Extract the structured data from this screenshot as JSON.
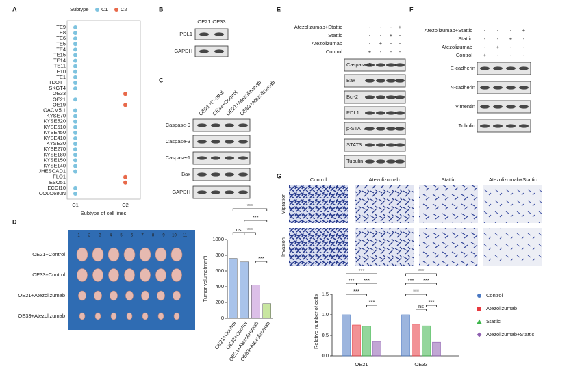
{
  "panel_labels": [
    "A",
    "B",
    "C",
    "D",
    "E",
    "F",
    "G"
  ],
  "blot_b": {
    "lanes": [
      "OE21",
      "OE33"
    ],
    "rows": [
      "PDL1",
      "GAPDH"
    ]
  },
  "blot_c": {
    "lanes": [
      "OE21+Control",
      "OE33+Control",
      "OE21+Atezolizumab",
      "OE33+Atezolizumab"
    ],
    "rows": [
      "Caspase-9",
      "Caspase-3",
      "Caspase-1",
      "Bax",
      "GAPDH"
    ]
  },
  "blot_e": {
    "treatments": [
      {
        "name": "Atezolizumab+Stattic",
        "signs": [
          "-",
          "-",
          "-",
          "+"
        ]
      },
      {
        "name": "Stattic",
        "signs": [
          "-",
          "-",
          "+",
          "-"
        ]
      },
      {
        "name": "Atezolizumab",
        "signs": [
          "-",
          "+",
          "-",
          "-"
        ]
      },
      {
        "name": "Control",
        "signs": [
          "+",
          "-",
          "-",
          "-"
        ]
      }
    ],
    "rows": [
      "Caspase-3",
      "Bax",
      "Bcl-2",
      "PDL1",
      "p-STAT3",
      "STAT3",
      "Tubulin"
    ]
  },
  "blot_f": {
    "treatments": [
      {
        "name": "Atezolizumab+Stattic",
        "signs": [
          "-",
          "-",
          "-",
          "+"
        ]
      },
      {
        "name": "Stattic",
        "signs": [
          "-",
          "-",
          "+",
          "-"
        ]
      },
      {
        "name": "Atezolizumab",
        "signs": [
          "-",
          "+",
          "-",
          "-"
        ]
      },
      {
        "name": "Control",
        "signs": [
          "+",
          "-",
          "-",
          "-"
        ]
      }
    ],
    "rows": [
      "E-cadherin",
      "N-cadherin",
      "Vimentin",
      "Tubulin"
    ]
  },
  "tumor_photo": {
    "ruler": [
      1,
      2,
      3,
      4,
      5,
      6,
      7,
      8,
      9,
      10,
      11
    ],
    "rows": [
      "OE21+Control",
      "OE33+Control",
      "OE21+Atezolizumab",
      "OE33+Atezolizumab"
    ]
  },
  "micrographs": {
    "columns": [
      "Control",
      "Atezolizumab",
      "Stattic",
      "Atezolizumab+Stattic"
    ],
    "rows": [
      "Migration",
      "Invasion"
    ]
  },
  "chart_data": [
    {
      "type": "dot_matrix",
      "legend_title": "Subtype",
      "series": [
        {
          "name": "C1",
          "color": "#7ec3df"
        },
        {
          "name": "C2",
          "color": "#e8694a"
        }
      ],
      "categories": [
        "TE9",
        "TE8",
        "TE6",
        "TE5",
        "TE4",
        "TE15",
        "TE14",
        "TE11",
        "TE10",
        "TE1",
        "TDOTT",
        "SKGT4",
        "OE33",
        "OE21",
        "OE19",
        "OACM5.1",
        "KYSE70",
        "KYSE520",
        "KYSE510",
        "KYSE450",
        "KYSE410",
        "KYSE30",
        "KYSE270",
        "KYSE180",
        "KYSE150",
        "KYSE140",
        "JHESOAD1",
        "FLO1",
        "ESO51",
        "ECGI10",
        "COLO680N"
      ],
      "subtypes": [
        "C1",
        "C1",
        "C1",
        "C1",
        "C1",
        "C1",
        "C1",
        "C1",
        "C1",
        "C1",
        "C1",
        "C1",
        "C2",
        "C1",
        "C2",
        "C1",
        "C1",
        "C1",
        "C1",
        "C1",
        "C1",
        "C1",
        "C1",
        "C1",
        "C1",
        "C1",
        "C1",
        "C2",
        "C2",
        "C1",
        "C1"
      ],
      "x_categories": [
        "C1",
        "C2"
      ],
      "xlabel": "Subtype of cell lines"
    },
    {
      "type": "bar",
      "ylabel": "Tumor volume(mm³)",
      "categories": [
        "OE21+Control",
        "OE33+Control",
        "OE21+Atezolizumab",
        "OE33+Atezolizumab"
      ],
      "values": [
        760,
        715,
        420,
        185
      ],
      "colors": [
        "#a9c3ea",
        "#a9c3ea",
        "#dcbfe8",
        "#c8e6a0"
      ],
      "ylim": [
        0,
        1000
      ],
      "yticks": [
        0,
        200,
        400,
        600,
        800,
        1000
      ],
      "annotations": [
        "***",
        "***",
        "ns",
        "***",
        "***"
      ]
    },
    {
      "type": "grouped_bar",
      "ylabel": "Relative number of cells",
      "categories": [
        "OE21",
        "OE33"
      ],
      "series": [
        {
          "name": "Control",
          "color": "#4a78c2",
          "marker": "circle",
          "values": [
            1.0,
            1.0
          ]
        },
        {
          "name": "Atezolizumab",
          "color": "#e8393f",
          "marker": "square",
          "values": [
            0.75,
            0.77
          ]
        },
        {
          "name": "Stattic",
          "color": "#3cb54a",
          "marker": "triangle",
          "values": [
            0.72,
            0.73
          ]
        },
        {
          "name": "Atezolizumab+Stattic",
          "color": "#8e5fb0",
          "marker": "diamond",
          "values": [
            0.35,
            0.33
          ]
        }
      ],
      "ylim": [
        0,
        1.5
      ],
      "yticks": [
        {
          "value": 0,
          "label": "0.0"
        },
        {
          "value": 0.5,
          "label": "0.5"
        },
        {
          "value": 1,
          "label": "1.0"
        },
        {
          "value": 1.5,
          "label": "1.5"
        }
      ],
      "annotations": [
        [
          "***",
          "***",
          "***",
          "***",
          "***"
        ],
        [
          "***",
          "***",
          "***",
          "***",
          "ns",
          "***"
        ]
      ]
    }
  ]
}
